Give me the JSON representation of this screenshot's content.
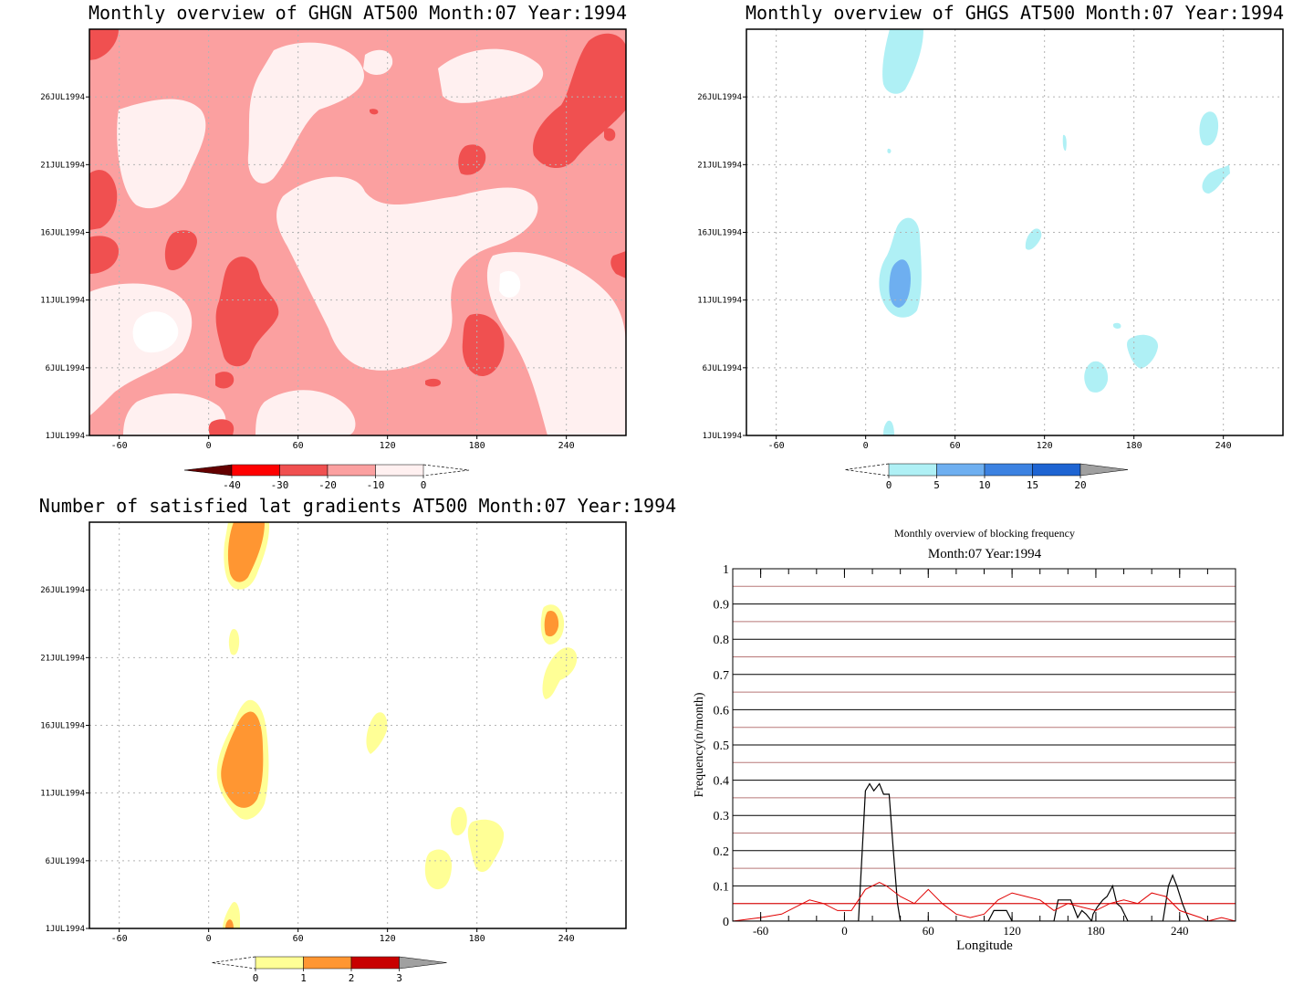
{
  "chart_data": [
    {
      "type": "heatmap",
      "title": "Monthly overview of GHGN AT500 Month:07 Year:1994",
      "x_ticks": [
        "-60",
        "0",
        "60",
        "120",
        "180",
        "240"
      ],
      "y_ticks": [
        "1JUL1994",
        "6JUL1994",
        "11JUL1994",
        "16JUL1994",
        "21JUL1994",
        "26JUL1994"
      ],
      "xlim": [
        -80,
        280
      ],
      "ylim": [
        "1JUL1994",
        "31JUL1994"
      ],
      "colorbar": {
        "labels": [
          "-40",
          "-30",
          "-20",
          "-10",
          "0"
        ],
        "colors": [
          "#640000",
          "#ff0000",
          "#f05050",
          "#fba0a0",
          "#fff0f0"
        ]
      },
      "field_colors": {
        "background": "#fba0a0",
        "positive": "#fff0f0",
        "strong_negative": "#f05050"
      },
      "grid": true
    },
    {
      "type": "heatmap",
      "title": "Monthly overview of GHGS AT500 Month:07 Year:1994",
      "x_ticks": [
        "-60",
        "0",
        "60",
        "120",
        "180",
        "240"
      ],
      "y_ticks": [
        "1JUL1994",
        "6JUL1994",
        "11JUL1994",
        "16JUL1994",
        "21JUL1994",
        "26JUL1994"
      ],
      "xlim": [
        -80,
        280
      ],
      "ylim": [
        "1JUL1994",
        "31JUL1994"
      ],
      "colorbar": {
        "labels": [
          "0",
          "5",
          "10",
          "15",
          "20"
        ],
        "colors": [
          "#aff0f5",
          "#6eaff0",
          "#3c82e1",
          "#1e64d2",
          "#a0a0a0"
        ]
      },
      "grid": true
    },
    {
      "type": "heatmap",
      "title": "Number of satisfied lat gradients AT500 Month:07 Year:1994",
      "x_ticks": [
        "-60",
        "0",
        "60",
        "120",
        "180",
        "240"
      ],
      "y_ticks": [
        "1JUL1994",
        "6JUL1994",
        "11JUL1994",
        "16JUL1994",
        "21JUL1994",
        "26JUL1994"
      ],
      "xlim": [
        -80,
        280
      ],
      "ylim": [
        "1JUL1994",
        "31JUL1994"
      ],
      "colorbar": {
        "labels": [
          "0",
          "1",
          "2",
          "3"
        ],
        "colors": [
          "#ffff96",
          "#ff9632",
          "#c80000",
          "#a0a0a0"
        ]
      },
      "grid": true
    },
    {
      "type": "line",
      "title": "Monthly overview of blocking frequency",
      "subtitle": "Month:07 Year:1994",
      "xlabel": "Longitude",
      "ylabel": "Frequency(n/month)",
      "x_ticks": [
        "-60",
        "0",
        "60",
        "120",
        "180",
        "240"
      ],
      "y_ticks": [
        "0",
        "0.1",
        "0.2",
        "0.3",
        "0.4",
        "0.5",
        "0.6",
        "0.7",
        "0.8",
        "0.9",
        "1"
      ],
      "xlim": [
        -80,
        280
      ],
      "ylim": [
        0,
        1
      ],
      "grid": true,
      "series": [
        {
          "color": "#000000",
          "x": [
            -80,
            10,
            15,
            18,
            21,
            25,
            28,
            32,
            35,
            38,
            40,
            103,
            107,
            116,
            120,
            150,
            153,
            157,
            162,
            165,
            167,
            170,
            173,
            177,
            178,
            181,
            185,
            188,
            192,
            195,
            198,
            203,
            228,
            232,
            235,
            238,
            242,
            247,
            280
          ],
          "y": [
            0,
            0,
            0.37,
            0.39,
            0.37,
            0.39,
            0.36,
            0.36,
            0.2,
            0.05,
            0,
            0,
            0.03,
            0.03,
            0,
            0,
            0.06,
            0.06,
            0.06,
            0.03,
            0.01,
            0.03,
            0.02,
            0,
            0.02,
            0.04,
            0.06,
            0.07,
            0.1,
            0.05,
            0.04,
            0,
            0,
            0.1,
            0.13,
            0.1,
            0.05,
            0,
            0
          ]
        },
        {
          "color": "#e00000",
          "x": [
            -80,
            -60,
            -45,
            -30,
            -25,
            -15,
            -5,
            5,
            15,
            25,
            30,
            40,
            50,
            60,
            70,
            80,
            90,
            100,
            110,
            120,
            130,
            140,
            150,
            160,
            170,
            180,
            190,
            200,
            210,
            220,
            230,
            240,
            255,
            260,
            270,
            280
          ],
          "y": [
            0,
            0.01,
            0.02,
            0.05,
            0.06,
            0.05,
            0.03,
            0.03,
            0.09,
            0.11,
            0.1,
            0.07,
            0.05,
            0.09,
            0.05,
            0.02,
            0.01,
            0.02,
            0.06,
            0.08,
            0.07,
            0.06,
            0.03,
            0.05,
            0.04,
            0.03,
            0.05,
            0.06,
            0.05,
            0.08,
            0.07,
            0.03,
            0.01,
            0.0,
            0.01,
            0
          ]
        }
      ],
      "reference_line": {
        "y": 0.05,
        "color": "#e00000"
      }
    }
  ]
}
